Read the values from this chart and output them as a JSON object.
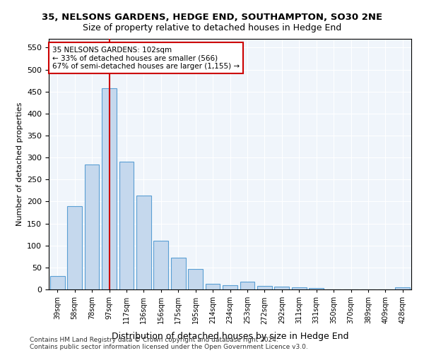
{
  "title1": "35, NELSONS GARDENS, HEDGE END, SOUTHAMPTON, SO30 2NE",
  "title2": "Size of property relative to detached houses in Hedge End",
  "xlabel": "Distribution of detached houses by size in Hedge End",
  "ylabel": "Number of detached properties",
  "categories": [
    "39sqm",
    "58sqm",
    "78sqm",
    "97sqm",
    "117sqm",
    "136sqm",
    "156sqm",
    "175sqm",
    "195sqm",
    "214sqm",
    "234sqm",
    "253sqm",
    "272sqm",
    "292sqm",
    "311sqm",
    "331sqm",
    "350sqm",
    "370sqm",
    "389sqm",
    "409sqm",
    "428sqm"
  ],
  "values": [
    30,
    190,
    285,
    457,
    290,
    213,
    110,
    73,
    47,
    13,
    10,
    18,
    8,
    7,
    5,
    4,
    0,
    0,
    0,
    0,
    5
  ],
  "bar_color": "#c5d8ed",
  "bar_edge_color": "#5a9fd4",
  "vline_x": 3,
  "vline_color": "#cc0000",
  "annotation_text": "35 NELSONS GARDENS: 102sqm\n← 33% of detached houses are smaller (566)\n67% of semi-detached houses are larger (1,155) →",
  "annotation_box_color": "#ffffff",
  "annotation_box_edge": "#cc0000",
  "footer1": "Contains HM Land Registry data © Crown copyright and database right 2024.",
  "footer2": "Contains public sector information licensed under the Open Government Licence v3.0.",
  "bg_color": "#f0f5fb",
  "ylim": [
    0,
    570
  ],
  "yticks": [
    0,
    50,
    100,
    150,
    200,
    250,
    300,
    350,
    400,
    450,
    500,
    550
  ]
}
